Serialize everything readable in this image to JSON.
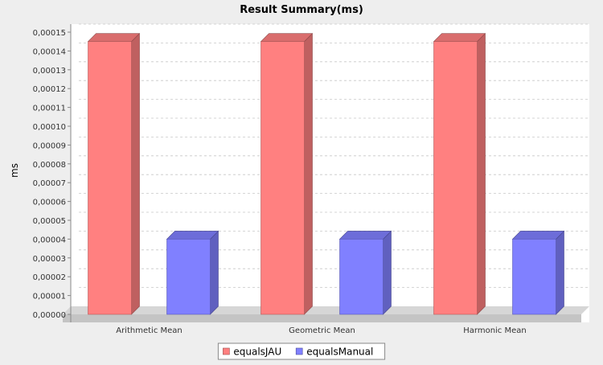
{
  "chart_data": {
    "type": "bar",
    "title": "Result Summary(ms)",
    "xlabel": "",
    "ylabel": "ms",
    "categories": [
      "Arithmetic Mean",
      "Geometric Mean",
      "Harmonic Mean"
    ],
    "series": [
      {
        "name": "equalsJAU",
        "values": [
          0.000145,
          0.000145,
          0.000145
        ],
        "color": "#ff8080"
      },
      {
        "name": "equalsManual",
        "values": [
          4e-05,
          4e-05,
          4e-05
        ],
        "color": "#8080ff"
      }
    ],
    "ylim": [
      0,
      0.00015
    ],
    "yticks": [
      "0,00000",
      "0,00001",
      "0,00002",
      "0,00003",
      "0,00004",
      "0,00005",
      "0,00006",
      "0,00007",
      "0,00008",
      "0,00009",
      "0,00010",
      "0,00011",
      "0,00012",
      "0,00013",
      "0,00014",
      "0,00015"
    ],
    "grid": true,
    "legend": "bottom-center",
    "style": "3d"
  }
}
